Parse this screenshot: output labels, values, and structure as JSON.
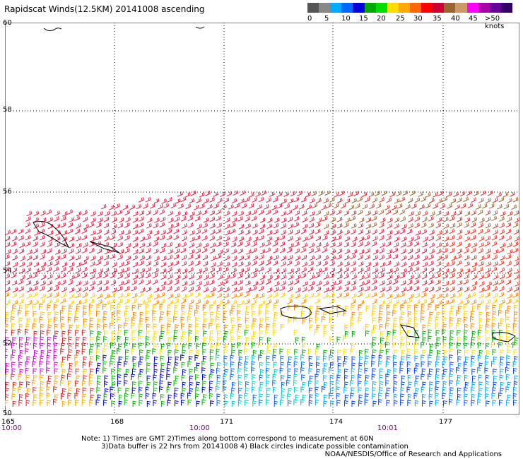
{
  "title": "Rapidscat Winds(12.5KM) 20141008 ascending",
  "legend": {
    "colors": [
      "#555555",
      "#888888",
      "#00aaff",
      "#0066ff",
      "#0000dd",
      "#00aa00",
      "#00dd00",
      "#ffdd00",
      "#ffaa00",
      "#ff6600",
      "#ff0000",
      "#cc0033",
      "#996633",
      "#cc9966",
      "#ff00ff",
      "#aa00aa",
      "#660099",
      "#330066"
    ],
    "labels": [
      "0",
      "5",
      "10",
      "15",
      "20",
      "25",
      "30",
      "35",
      "40",
      "45",
      ">50 knots"
    ]
  },
  "lat_labels": [
    "60",
    "58",
    "56",
    "54",
    "52",
    "50"
  ],
  "lon_labels": [
    "165",
    "168",
    "171",
    "174",
    "177"
  ],
  "time_labels": [
    "10:00",
    "10:00",
    "10:01"
  ],
  "note_lines": [
    "Note: 1) Times are GMT 2)Times along bottom correspond to measurement at 60N",
    "3)Data buffer is 22 hrs from 20141008 4) Black circles indicate possible contamination"
  ],
  "credit": "NOAA/NESDIS/Office of Research and Applications"
}
